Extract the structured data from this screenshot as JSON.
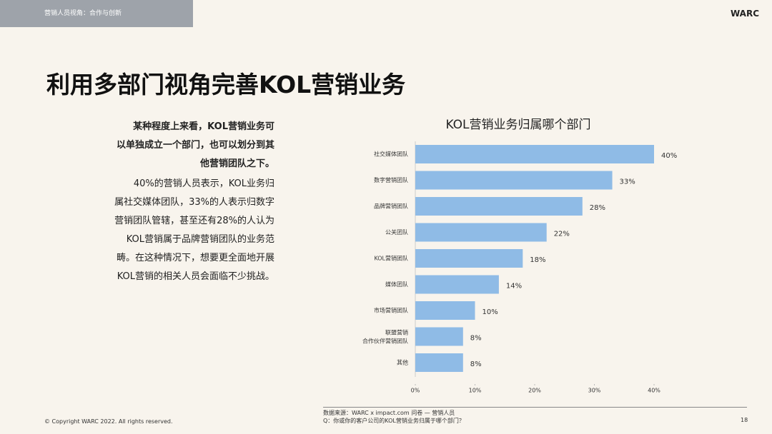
{
  "header": {
    "section": "营销人员视角：合作与创新",
    "brand": "WARC"
  },
  "title": "利用多部门视角完善KOL营销业务",
  "body": {
    "lead": [
      "某种程度上来看，KOL营销业务可",
      "以单独成立一个部门，也可以划分到其",
      "他营销团队之下。"
    ],
    "text": [
      "40%的营销人员表示，KOL业务归",
      "属社交媒体团队，33%的人表示归数字",
      "营销团队管辖，甚至还有28%的人认为",
      "KOL营销属于品牌营销团队的业务范",
      "畴。在这种情况下，想要更全面地开展",
      "KOL营销的相关人员会面临不少挑战。"
    ]
  },
  "footer": {
    "copyright": "© Copyright WARC 2022. All rights reserved.",
    "source": "数据来源：WARC x impact.com 问卷 — 营销人员",
    "question": "Q：你或你的客户公司的KOL营销业务归属于哪个部门？",
    "page": "18"
  },
  "chart_data": {
    "type": "hbar",
    "title": "KOL营销业务归属哪个部门",
    "categories": [
      "社交媒体团队",
      "数字营销团队",
      "品牌营销团队",
      "公关团队",
      "KOL营销团队",
      "媒体团队",
      "市场营销团队",
      "联盟营销\n合作伙伴营销团队",
      "其他"
    ],
    "values": [
      40,
      33,
      28,
      22,
      18,
      14,
      10,
      8,
      8
    ],
    "value_labels": [
      "40%",
      "33%",
      "28%",
      "22%",
      "18%",
      "14%",
      "10%",
      "8%",
      "8%"
    ],
    "color": "#8fbbe6",
    "xlim": [
      0,
      40
    ],
    "xticks": [
      {
        "value": 0,
        "label": "0%"
      },
      {
        "value": 10,
        "label": "10%"
      },
      {
        "value": 20,
        "label": "20%"
      },
      {
        "value": 30,
        "label": "30%"
      },
      {
        "value": 40,
        "label": "40%"
      }
    ]
  }
}
